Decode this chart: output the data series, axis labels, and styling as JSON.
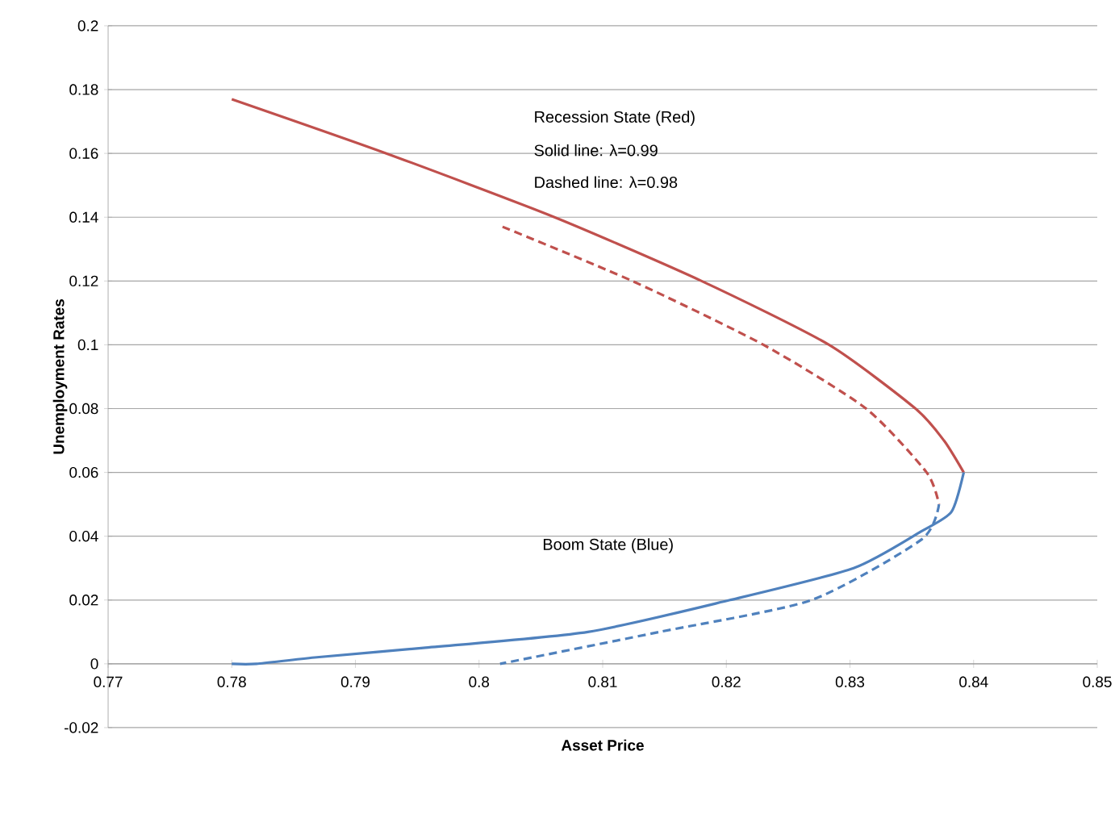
{
  "chart_data": {
    "type": "line",
    "xlabel": "Asset Price",
    "ylabel": "Unemployment Rates",
    "xlim": [
      0.77,
      0.85
    ],
    "ylim": [
      -0.02,
      0.2
    ],
    "xticks": [
      0.77,
      0.78,
      0.79,
      0.8,
      0.81,
      0.82,
      0.83,
      0.84,
      0.85
    ],
    "yticks": [
      -0.02,
      0,
      0.02,
      0.04,
      0.06,
      0.08,
      0.1,
      0.12,
      0.14,
      0.16,
      0.18,
      0.2
    ],
    "grid": "y",
    "marker": "none",
    "series": [
      {
        "color": "#c0504d",
        "line_style": "solid",
        "x": [
          0.78,
          0.7925,
          0.8061,
          0.818,
          0.8283,
          0.8353,
          0.8376,
          0.8392
        ],
        "values": [
          0.177,
          0.16,
          0.14,
          0.12,
          0.1,
          0.08,
          0.07,
          0.06
        ]
      },
      {
        "color": "#c0504d",
        "line_style": "dashed",
        "x": [
          0.8019,
          0.8124,
          0.823,
          0.8313,
          0.8362,
          0.8372
        ],
        "values": [
          0.137,
          0.12,
          0.1,
          0.08,
          0.06,
          0.05
        ]
      },
      {
        "color": "#4f81bd",
        "line_style": "solid",
        "x": [
          0.8392,
          0.8382,
          0.8358,
          0.8303,
          0.8203,
          0.8088,
          0.7955,
          0.7867,
          0.782,
          0.78
        ],
        "values": [
          0.06,
          0.0476,
          0.0416,
          0.03,
          0.02,
          0.01,
          0.005,
          0.002,
          0.0,
          0.0
        ]
      },
      {
        "color": "#4f81bd",
        "line_style": "dashed",
        "x": [
          0.8372,
          0.8358,
          0.8269,
          0.8146,
          0.8017
        ],
        "values": [
          0.05,
          0.039,
          0.02,
          0.01,
          0.0
        ]
      }
    ],
    "annotations": [
      "Recession State (Red)",
      "Solid line: λ=0.99",
      "Dashed line: λ=0.98",
      "Boom State (Blue)"
    ]
  }
}
